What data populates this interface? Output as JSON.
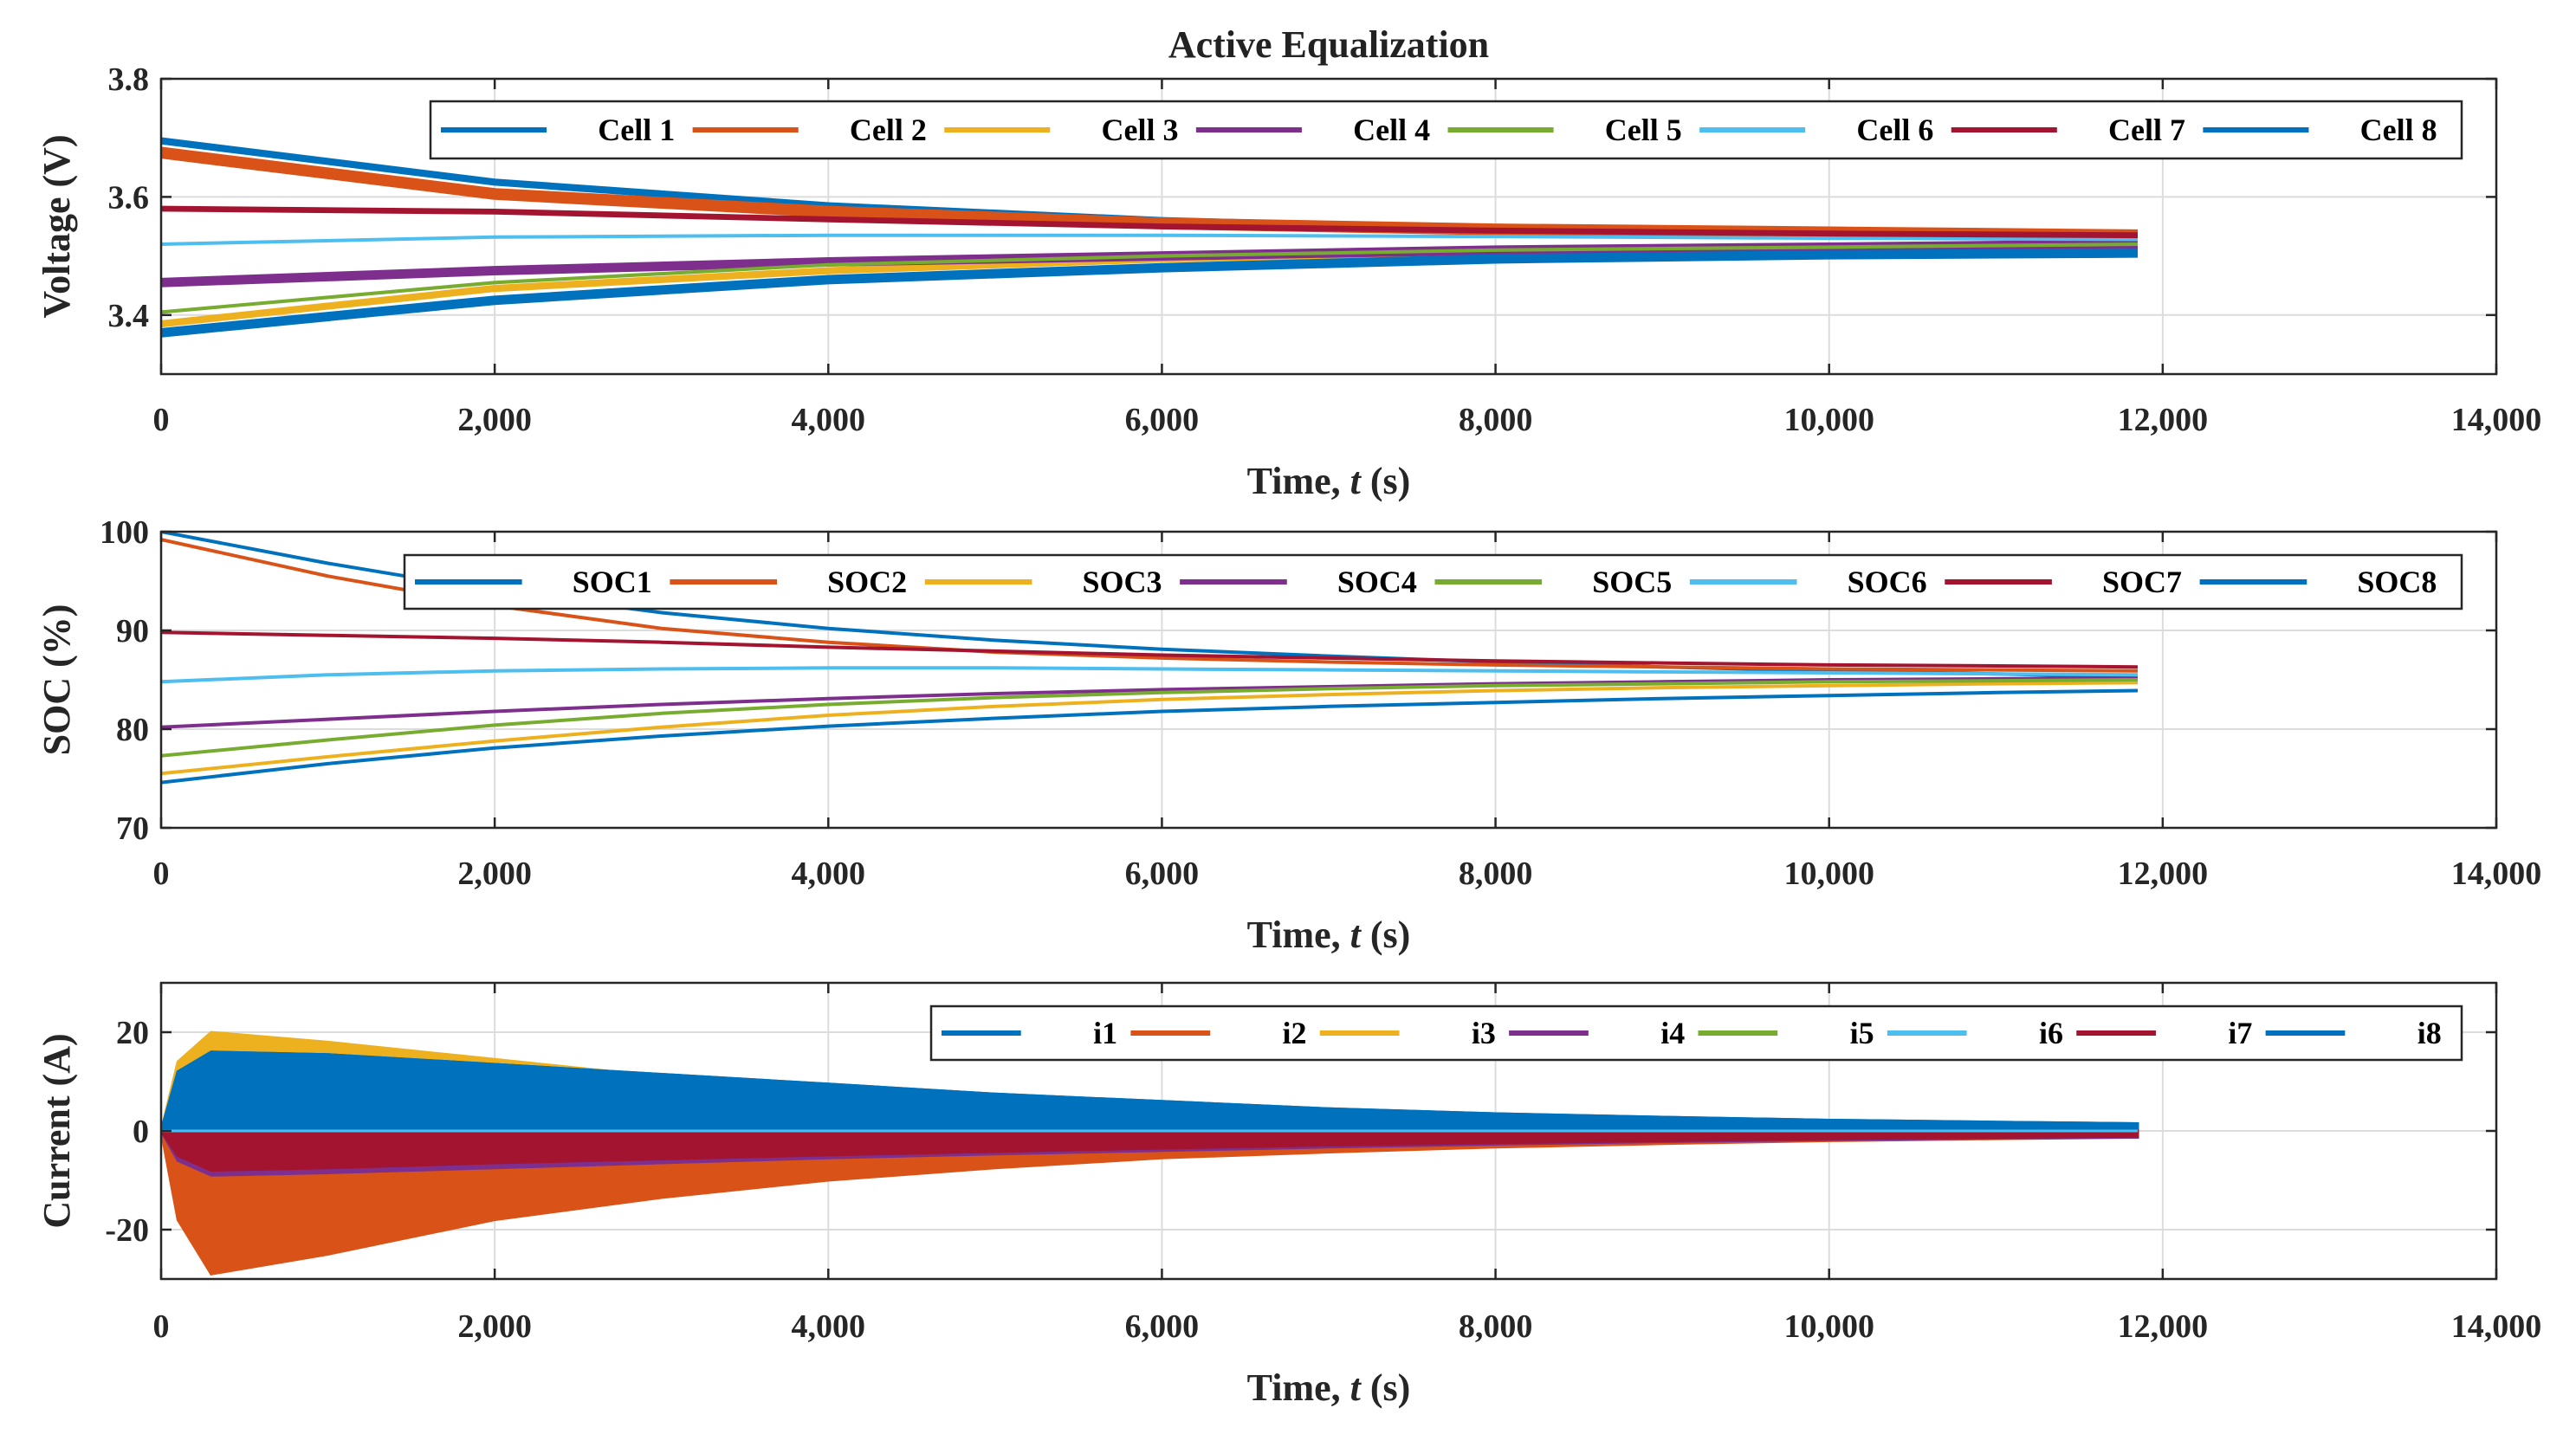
{
  "colors": [
    "#0072BD",
    "#D95319",
    "#EDB120",
    "#7E2F8E",
    "#77AC30",
    "#4DBEEE",
    "#A2142F",
    "#0072BD"
  ],
  "chart_data": [
    {
      "type": "line",
      "title": "Active Equalization",
      "xlabel": "Time, ",
      "xlabel_var": "t",
      "xlabel_unit": " (s)",
      "ylabel": "Voltage (V)",
      "xlim": [
        0,
        14000
      ],
      "ylim": [
        3.3,
        3.8
      ],
      "xticks": [
        0,
        2000,
        4000,
        6000,
        8000,
        10000,
        12000,
        14000
      ],
      "xtick_labels": [
        "0",
        "2,000",
        "4,000",
        "6,000",
        "8,000",
        "10,000",
        "12,000",
        "14,000"
      ],
      "yticks": [
        3.4,
        3.6,
        3.8
      ],
      "ytick_labels": [
        "3.4",
        "3.6",
        "3.8"
      ],
      "grid": true,
      "legend": "top-right, horizontal",
      "x": [
        0,
        2000,
        4000,
        6000,
        8000,
        10000,
        11850
      ],
      "series": [
        {
          "name": "Cell 1",
          "values": [
            3.695,
            3.625,
            3.585,
            3.56,
            3.545,
            3.535,
            3.53
          ],
          "band": 0.012
        },
        {
          "name": "Cell 2",
          "values": [
            3.675,
            3.605,
            3.575,
            3.555,
            3.545,
            3.54,
            3.535
          ],
          "band": 0.02
        },
        {
          "name": "Cell 3",
          "values": [
            3.385,
            3.445,
            3.475,
            3.495,
            3.505,
            3.51,
            3.515
          ],
          "band": 0.012
        },
        {
          "name": "Cell 4",
          "values": [
            3.455,
            3.475,
            3.49,
            3.5,
            3.51,
            3.515,
            3.52
          ],
          "band": 0.016
        },
        {
          "name": "Cell 5",
          "values": [
            3.405,
            3.455,
            3.485,
            3.5,
            3.51,
            3.515,
            3.52
          ],
          "band": 0.006
        },
        {
          "name": "Cell 6",
          "values": [
            3.52,
            3.532,
            3.535,
            3.535,
            3.533,
            3.53,
            3.528
          ],
          "band": 0.003
        },
        {
          "name": "Cell 7",
          "values": [
            3.58,
            3.575,
            3.562,
            3.55,
            3.543,
            3.538,
            3.535
          ],
          "band": 0.01
        },
        {
          "name": "Cell 8",
          "values": [
            3.37,
            3.425,
            3.46,
            3.48,
            3.495,
            3.502,
            3.505
          ],
          "band": 0.016
        }
      ]
    },
    {
      "type": "line",
      "title": "",
      "xlabel": "Time, ",
      "xlabel_var": "t",
      "xlabel_unit": " (s)",
      "ylabel": "SOC (%)",
      "xlim": [
        0,
        14000
      ],
      "ylim": [
        70,
        100
      ],
      "xticks": [
        0,
        2000,
        4000,
        6000,
        8000,
        10000,
        12000,
        14000
      ],
      "xtick_labels": [
        "0",
        "2,000",
        "4,000",
        "6,000",
        "8,000",
        "10,000",
        "12,000",
        "14,000"
      ],
      "yticks": [
        70,
        80,
        90,
        100
      ],
      "ytick_labels": [
        "70",
        "80",
        "90",
        "100"
      ],
      "grid": true,
      "legend": "top-right, horizontal",
      "x": [
        0,
        1000,
        2000,
        3000,
        4000,
        5000,
        6000,
        7000,
        8000,
        9000,
        10000,
        11000,
        11850
      ],
      "series": [
        {
          "name": "SOC1",
          "values": [
            100,
            96.8,
            94.0,
            91.8,
            90.2,
            89.0,
            88.1,
            87.4,
            86.8,
            86.3,
            85.9,
            85.6,
            85.3
          ]
        },
        {
          "name": "SOC2",
          "values": [
            99.2,
            95.5,
            92.5,
            90.2,
            88.8,
            87.8,
            87.2,
            86.8,
            86.5,
            86.3,
            86.1,
            86.0,
            85.9
          ]
        },
        {
          "name": "SOC3",
          "values": [
            75.5,
            77.2,
            78.8,
            80.2,
            81.4,
            82.3,
            83.0,
            83.5,
            83.9,
            84.2,
            84.4,
            84.6,
            84.7
          ]
        },
        {
          "name": "SOC4",
          "values": [
            80.2,
            81.0,
            81.8,
            82.5,
            83.1,
            83.6,
            84.0,
            84.3,
            84.6,
            84.8,
            85.0,
            85.1,
            85.2
          ]
        },
        {
          "name": "SOC5",
          "values": [
            77.3,
            78.9,
            80.4,
            81.6,
            82.5,
            83.2,
            83.7,
            84.1,
            84.4,
            84.6,
            84.8,
            84.9,
            85.0
          ]
        },
        {
          "name": "SOC6",
          "values": [
            84.8,
            85.5,
            85.9,
            86.1,
            86.2,
            86.2,
            86.1,
            86.0,
            85.9,
            85.8,
            85.7,
            85.6,
            85.5
          ]
        },
        {
          "name": "SOC7",
          "values": [
            89.8,
            89.5,
            89.2,
            88.8,
            88.3,
            87.9,
            87.5,
            87.2,
            86.9,
            86.7,
            86.5,
            86.4,
            86.3
          ]
        },
        {
          "name": "SOC8",
          "values": [
            74.6,
            76.5,
            78.1,
            79.3,
            80.3,
            81.1,
            81.8,
            82.3,
            82.7,
            83.1,
            83.4,
            83.7,
            83.9
          ]
        }
      ]
    },
    {
      "type": "area",
      "title": "",
      "xlabel": "Time, ",
      "xlabel_var": "t",
      "xlabel_unit": " (s)",
      "ylabel": "Current (A)",
      "xlim": [
        0,
        14000
      ],
      "ylim": [
        -30,
        30
      ],
      "xticks": [
        0,
        2000,
        4000,
        6000,
        8000,
        10000,
        12000,
        14000
      ],
      "xtick_labels": [
        "0",
        "2,000",
        "4,000",
        "6,000",
        "8,000",
        "10,000",
        "12,000",
        "14,000"
      ],
      "yticks": [
        -20,
        0,
        20
      ],
      "ytick_labels": [
        "-20",
        "0",
        "20"
      ],
      "grid": true,
      "legend": "top-right, horizontal",
      "x": [
        0,
        100,
        300,
        1000,
        2000,
        3000,
        4000,
        5000,
        6000,
        7000,
        8000,
        9000,
        10000,
        11000,
        11850
      ],
      "series": [
        {
          "name": "i1",
          "max": [
            0,
            12,
            16,
            15.5,
            13.5,
            11.5,
            9.5,
            7.5,
            6,
            4.5,
            3.5,
            2.8,
            2.2,
            1.8,
            1.5
          ],
          "min": [
            0,
            0,
            0,
            0,
            0,
            0,
            0,
            0,
            0,
            0,
            0,
            0,
            0,
            0,
            0
          ]
        },
        {
          "name": "i2",
          "max": [
            0,
            0,
            0,
            0,
            0,
            0,
            0,
            0,
            0,
            0,
            0,
            0,
            0,
            0,
            0
          ],
          "min": [
            0,
            -18,
            -29,
            -25,
            -18,
            -13.5,
            -10,
            -7.5,
            -5.5,
            -4.3,
            -3.3,
            -2.6,
            -2.0,
            -1.6,
            -1.3
          ]
        },
        {
          "name": "i3",
          "max": [
            0,
            14,
            20,
            18,
            14.5,
            11,
            8,
            5.5,
            4,
            3,
            2.3,
            1.8,
            1.4,
            1.1,
            0.9
          ],
          "min": [
            0,
            0,
            0,
            0,
            0,
            0,
            0,
            0,
            0,
            0,
            0,
            0,
            0,
            0,
            0
          ]
        },
        {
          "name": "i4",
          "max": [
            0,
            0,
            0,
            0,
            0,
            0,
            0,
            0,
            0,
            0,
            0,
            0,
            0,
            0,
            0
          ],
          "min": [
            0,
            -6,
            -9,
            -8.5,
            -7.5,
            -6.5,
            -5.5,
            -4.7,
            -4,
            -3.3,
            -2.7,
            -2.2,
            -1.8,
            -1.5,
            -1.3
          ]
        },
        {
          "name": "i5",
          "max": [
            0,
            0,
            0,
            0,
            0,
            0,
            0,
            0,
            0,
            0,
            0,
            0,
            0,
            0,
            0
          ],
          "min": [
            0,
            0,
            0,
            0,
            0,
            0,
            0,
            0,
            0,
            0,
            0,
            0,
            0,
            0,
            0
          ]
        },
        {
          "name": "i6",
          "max": [
            0,
            0,
            0,
            0,
            0,
            0,
            0,
            0,
            0,
            0,
            0,
            0,
            0,
            0,
            0
          ],
          "min": [
            0,
            0,
            0,
            0,
            0,
            0,
            0,
            0,
            0,
            0,
            0,
            0,
            0,
            0,
            0
          ]
        },
        {
          "name": "i7",
          "max": [
            0,
            0,
            0,
            0,
            0,
            0,
            0,
            0,
            0,
            0,
            0,
            0,
            0,
            0,
            0
          ],
          "min": [
            0,
            -5,
            -8,
            -7.5,
            -6.5,
            -5.7,
            -4.9,
            -4.2,
            -3.5,
            -2.9,
            -2.4,
            -2.0,
            -1.6,
            -1.3,
            -1.1
          ]
        },
        {
          "name": "i8",
          "max": [
            0,
            12,
            16,
            15.5,
            13.5,
            11.5,
            9.5,
            7.5,
            6,
            4.5,
            3.5,
            2.8,
            2.2,
            1.8,
            1.5
          ],
          "min": [
            0,
            0,
            0,
            0,
            0,
            0,
            0,
            0,
            0,
            0,
            0,
            0,
            0,
            0,
            0
          ]
        }
      ]
    }
  ]
}
